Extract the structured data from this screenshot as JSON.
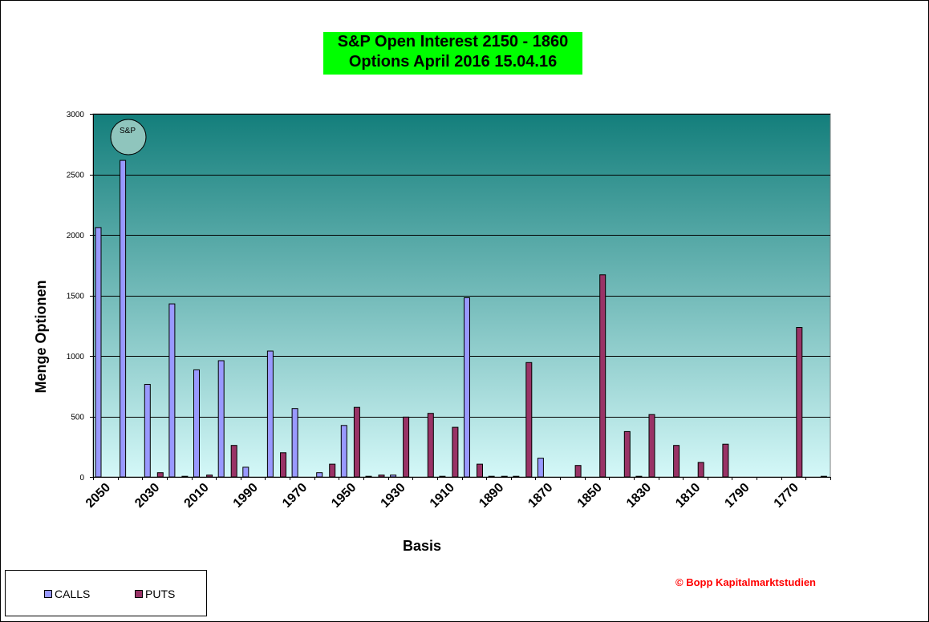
{
  "title": {
    "line1": "S&P Open Interest  2150 - 1860",
    "line2": "Options  April  2016 15.04.16"
  },
  "badge": "S&P",
  "copyright": "© Bopp Kapitalmarktstudien",
  "legend": {
    "calls": "CALLS",
    "puts": "PUTS"
  },
  "colors": {
    "calls": "#9999ff",
    "puts": "#993366",
    "title_bg": "#00ff00",
    "plot_top": "#137e7b",
    "plot_bottom": "#d4f8f8",
    "copyright": "#ff0000"
  },
  "chart_data": {
    "type": "bar",
    "title": "S&P Open Interest  2150 - 1860 / Options  April  2016 15.04.16",
    "xlabel": "Basis",
    "ylabel": "Menge Optionen",
    "ylim": [
      0,
      3000
    ],
    "yticks": [
      0,
      500,
      1000,
      1500,
      2000,
      2500,
      3000
    ],
    "grid": true,
    "legend_position": "bottom-left",
    "categories": [
      "2050",
      "2040",
      "2030",
      "2020",
      "2010",
      "2000",
      "1990",
      "1980",
      "1970",
      "1960",
      "1950",
      "1940",
      "1930",
      "1920",
      "1910",
      "1900",
      "1890",
      "1880",
      "1870",
      "1860",
      "1850",
      "1840",
      "1830",
      "1820",
      "1810",
      "1800",
      "1790",
      "1780",
      "1770",
      "1760"
    ],
    "tick_labels": [
      "2050",
      "2030",
      "2010",
      "1990",
      "1970",
      "1950",
      "1930",
      "1910",
      "1890",
      "1870",
      "1850",
      "1830",
      "1810",
      "1790",
      "1770"
    ],
    "series": [
      {
        "name": "CALLS",
        "values": [
          2060,
          2615,
          765,
          1430,
          885,
          960,
          80,
          1040,
          565,
          35,
          425,
          5,
          15,
          0,
          5,
          1480,
          5,
          5,
          155,
          0,
          0,
          0,
          5,
          0,
          0,
          0,
          0,
          0,
          0,
          0
        ]
      },
      {
        "name": "PUTS",
        "values": [
          0,
          0,
          35,
          5,
          15,
          260,
          0,
          200,
          0,
          105,
          575,
          15,
          495,
          525,
          410,
          105,
          5,
          945,
          0,
          95,
          1670,
          375,
          515,
          260,
          120,
          270,
          0,
          0,
          1235,
          5
        ]
      }
    ]
  }
}
